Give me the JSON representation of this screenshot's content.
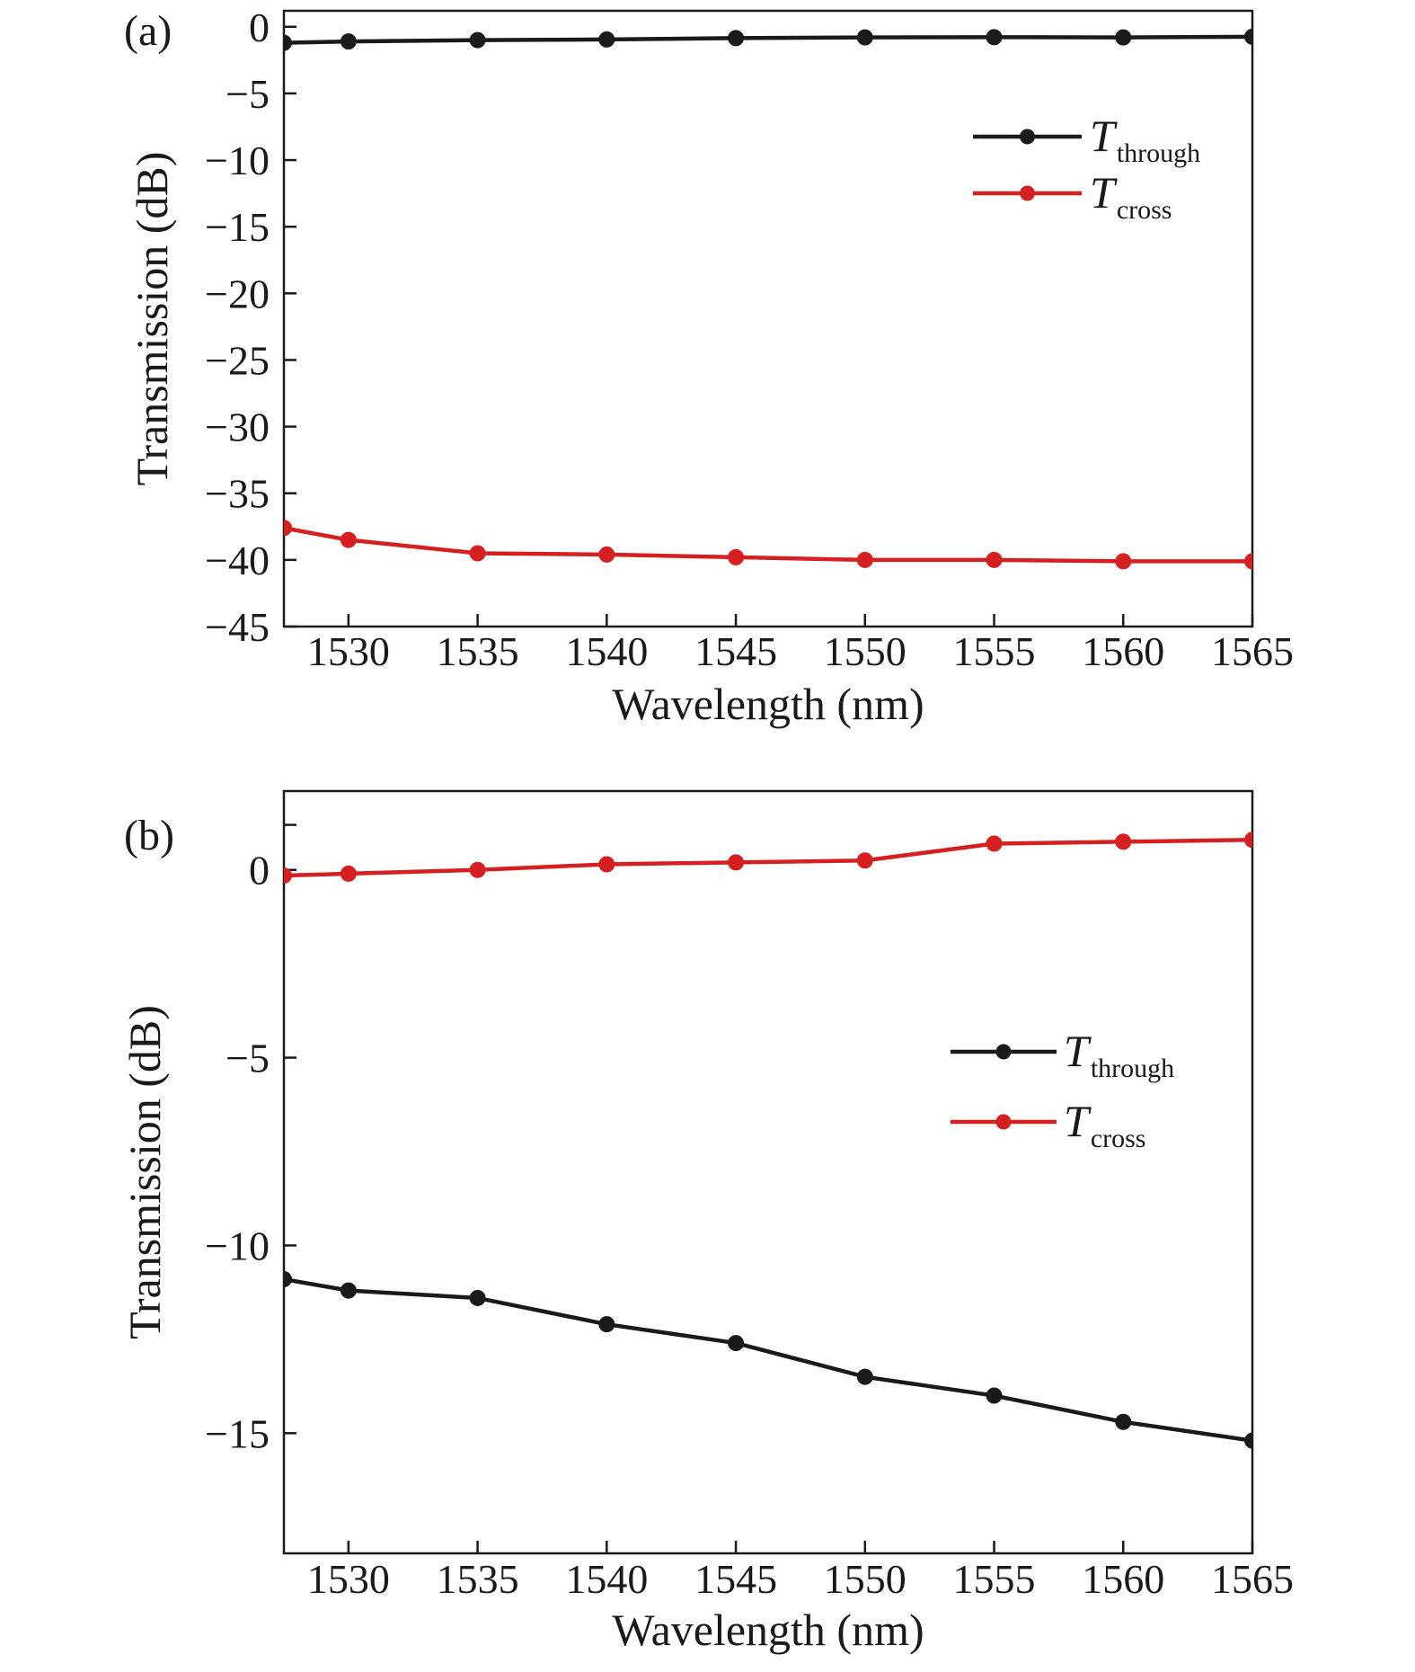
{
  "chart_data": [
    {
      "type": "line",
      "panel_label": "(a)",
      "xlabel": "Wavelength (nm)",
      "ylabel": "Transmission (dB)",
      "xlim": [
        1527.5,
        1565
      ],
      "ylim": [
        -45,
        1.2
      ],
      "x_ticks": [
        1530,
        1535,
        1540,
        1545,
        1550,
        1555,
        1560,
        1565
      ],
      "y_ticks": [
        0,
        -5,
        -10,
        -15,
        -20,
        -25,
        -30,
        -35,
        -40,
        -45
      ],
      "y_tick_labels": [
        "0",
        "−5",
        "−10",
        "−15",
        "−20",
        "−25",
        "−30",
        "−35",
        "−40",
        "−45"
      ],
      "legend_position": "top-right",
      "series": [
        {
          "name": "T",
          "subscript": "through",
          "color": "#1a1a1a",
          "x": [
            1527.5,
            1530,
            1535,
            1540,
            1545,
            1550,
            1555,
            1560,
            1565
          ],
          "y": [
            -1.2,
            -1.1,
            -1.0,
            -0.95,
            -0.85,
            -0.8,
            -0.78,
            -0.8,
            -0.75
          ]
        },
        {
          "name": "T",
          "subscript": "cross",
          "color": "#d42020",
          "x": [
            1527.5,
            1530,
            1535,
            1540,
            1545,
            1550,
            1555,
            1560,
            1565
          ],
          "y": [
            -37.6,
            -38.5,
            -39.5,
            -39.6,
            -39.8,
            -40.0,
            -40.0,
            -40.1,
            -40.1
          ]
        }
      ]
    },
    {
      "type": "line",
      "panel_label": "(b)",
      "xlabel": "Wavelength (nm)",
      "ylabel": "Transmission (dB)",
      "xlim": [
        1527.5,
        1565
      ],
      "ylim": [
        -18.2,
        2.1
      ],
      "x_ticks": [
        1530,
        1535,
        1540,
        1545,
        1550,
        1555,
        1560,
        1565
      ],
      "y_ticks": [
        0,
        -5,
        -10,
        -15
      ],
      "y_tick_labels": [
        "0",
        "−5",
        "−10",
        "−15"
      ],
      "y_minor_ticks": [
        1.2
      ],
      "legend_position": "center-right",
      "series": [
        {
          "name": "T",
          "subscript": "through",
          "color": "#1a1a1a",
          "x": [
            1527.5,
            1530,
            1535,
            1540,
            1545,
            1550,
            1555,
            1560,
            1565
          ],
          "y": [
            -10.9,
            -11.2,
            -11.4,
            -12.1,
            -12.6,
            -13.5,
            -14.0,
            -14.7,
            -15.2
          ]
        },
        {
          "name": "T",
          "subscript": "cross",
          "color": "#d42020",
          "x": [
            1527.5,
            1530,
            1535,
            1540,
            1545,
            1550,
            1555,
            1560,
            1565
          ],
          "y": [
            -0.15,
            -0.1,
            0.0,
            0.15,
            0.2,
            0.25,
            0.7,
            0.75,
            0.8
          ]
        }
      ]
    }
  ]
}
